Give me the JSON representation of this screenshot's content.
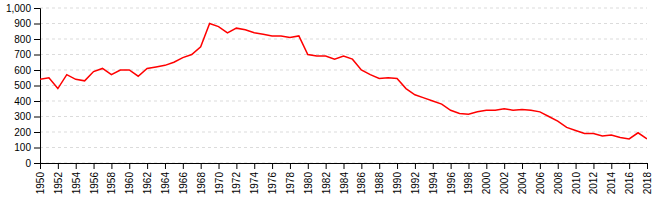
{
  "chart_data": {
    "type": "line",
    "x": [
      1950,
      1951,
      1952,
      1953,
      1954,
      1955,
      1956,
      1957,
      1958,
      1959,
      1960,
      1961,
      1962,
      1963,
      1964,
      1965,
      1966,
      1967,
      1968,
      1969,
      1970,
      1971,
      1972,
      1973,
      1974,
      1975,
      1976,
      1977,
      1978,
      1979,
      1980,
      1981,
      1982,
      1983,
      1984,
      1985,
      1986,
      1987,
      1988,
      1989,
      1990,
      1991,
      1992,
      1993,
      1994,
      1995,
      1996,
      1997,
      1998,
      1999,
      2000,
      2001,
      2002,
      2003,
      2004,
      2005,
      2006,
      2007,
      2008,
      2009,
      2010,
      2011,
      2012,
      2013,
      2014,
      2015,
      2016,
      2017,
      2018
    ],
    "values": [
      540,
      550,
      480,
      570,
      540,
      530,
      590,
      610,
      570,
      600,
      600,
      560,
      610,
      620,
      630,
      650,
      680,
      700,
      750,
      900,
      880,
      840,
      870,
      860,
      840,
      830,
      820,
      820,
      810,
      820,
      700,
      690,
      690,
      670,
      690,
      670,
      600,
      570,
      545,
      550,
      545,
      480,
      440,
      420,
      400,
      380,
      340,
      320,
      315,
      330,
      340,
      340,
      350,
      340,
      345,
      340,
      330,
      300,
      270,
      230,
      210,
      190,
      190,
      175,
      180,
      165,
      155,
      195,
      155
    ],
    "color": "#ff0000",
    "xlim": [
      1950,
      2018
    ],
    "xticks": [
      1950,
      1952,
      1954,
      1956,
      1958,
      1960,
      1962,
      1964,
      1966,
      1968,
      1970,
      1972,
      1974,
      1976,
      1978,
      1980,
      1982,
      1984,
      1986,
      1988,
      1990,
      1992,
      1994,
      1996,
      1998,
      2000,
      2002,
      2004,
      2006,
      2008,
      2010,
      2012,
      2014,
      2016,
      2018
    ],
    "ylim": [
      0,
      1000
    ],
    "yticks": [
      0,
      100,
      200,
      300,
      400,
      500,
      600,
      700,
      800,
      900,
      {
        "value": 1000,
        "label": "1,000"
      }
    ],
    "grid": true
  }
}
